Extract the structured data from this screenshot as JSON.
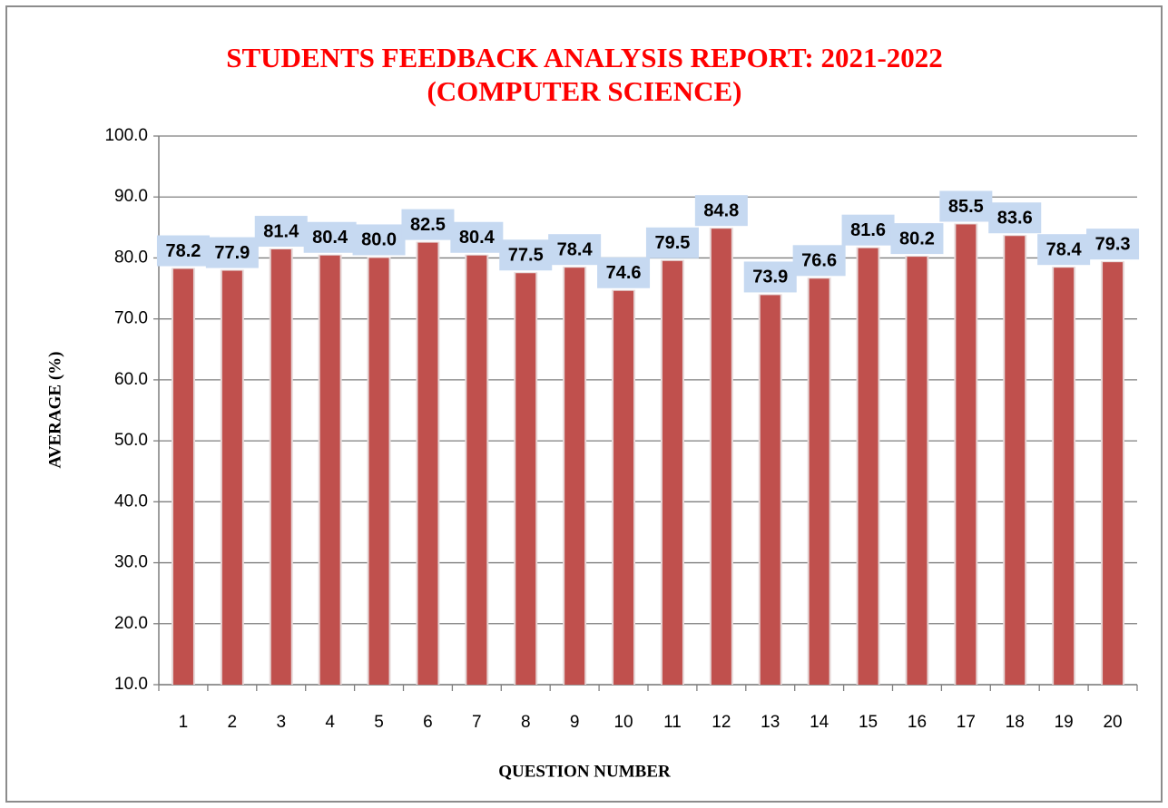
{
  "chart_data": {
    "type": "bar",
    "title": [
      "STUDENTS FEEDBACK ANALYSIS REPORT: 2021-2022",
      "(COMPUTER SCIENCE)"
    ],
    "x_label": "QUESTION NUMBER",
    "y_label": "AVERAGE (%)",
    "categories": [
      "1",
      "2",
      "3",
      "4",
      "5",
      "6",
      "7",
      "8",
      "9",
      "10",
      "11",
      "12",
      "13",
      "14",
      "15",
      "16",
      "17",
      "18",
      "19",
      "20"
    ],
    "values": [
      78.2,
      77.9,
      81.4,
      80.4,
      80.0,
      82.5,
      80.4,
      77.5,
      78.4,
      74.6,
      79.5,
      84.8,
      73.9,
      76.6,
      81.6,
      80.2,
      85.5,
      83.6,
      78.4,
      79.3
    ],
    "value_labels": [
      "78.2",
      "77.9",
      "81.4",
      "80.4",
      "80.0",
      "82.5",
      "80.4",
      "77.5",
      "78.4",
      "74.6",
      "79.5",
      "84.8",
      "73.9",
      "76.6",
      "81.6",
      "80.2",
      "85.5",
      "83.6",
      "78.4",
      "79.3"
    ],
    "color": "#c0504d",
    "label_box_color": "#c6d9f1",
    "ylim": [
      10,
      100
    ],
    "yticks": [
      {
        "value": 10,
        "label": "10.0"
      },
      {
        "value": 20,
        "label": "20.0"
      },
      {
        "value": 30,
        "label": "30.0"
      },
      {
        "value": 40,
        "label": "40.0"
      },
      {
        "value": 50,
        "label": "50.0"
      },
      {
        "value": 60,
        "label": "60.0"
      },
      {
        "value": 70,
        "label": "70.0"
      },
      {
        "value": 80,
        "label": "80.0"
      },
      {
        "value": 90,
        "label": "90.0"
      },
      {
        "value": 100,
        "label": "100.0"
      }
    ],
    "grid": true
  }
}
